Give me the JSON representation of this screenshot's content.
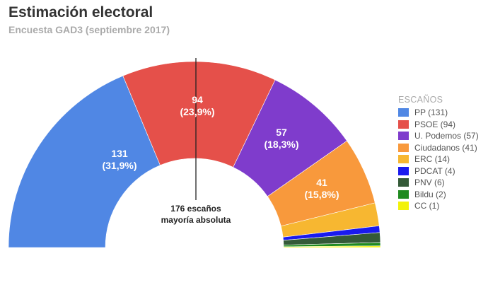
{
  "chart_data": {
    "type": "pie",
    "variant": "semicircle-donut",
    "title": "Estimación electoral",
    "subtitle": "Encuesta GAD3 (septiembre 2017)",
    "legend_title": "ESCAÑOS",
    "legend_position": "right",
    "total": 350,
    "majority": {
      "value": 176,
      "label_line1": "176 escaños",
      "label_line2": "mayoría absoluta"
    },
    "series": [
      {
        "name": "PP",
        "legend": "PP (131)",
        "value": 131,
        "pct": "31,9%",
        "label": "131",
        "label_pct": "(31,9%)",
        "color": "#5087e4"
      },
      {
        "name": "PSOE",
        "legend": "PSOE (94)",
        "value": 94,
        "pct": "23,9%",
        "label": "94",
        "label_pct": "(23,9%)",
        "color": "#e5504a"
      },
      {
        "name": "U. Podemos",
        "legend": "U. Podemos (57)",
        "value": 57,
        "pct": "18,3%",
        "label": "57",
        "label_pct": "(18,3%)",
        "color": "#7f3ccc"
      },
      {
        "name": "Ciudadanos",
        "legend": "Ciudadanos (41)",
        "value": 41,
        "pct": "15,8%",
        "label": "41",
        "label_pct": "(15,8%)",
        "color": "#f8993c"
      },
      {
        "name": "ERC",
        "legend": "ERC (14)",
        "value": 14,
        "color": "#f7b731"
      },
      {
        "name": "PDCAT",
        "legend": "PDCAT (4)",
        "value": 4,
        "color": "#1a1aee"
      },
      {
        "name": "PNV",
        "legend": "PNV (6)",
        "value": 6,
        "color": "#345a38"
      },
      {
        "name": "Bildu",
        "legend": "Bildu (2)",
        "value": 2,
        "color": "#1f8a1f"
      },
      {
        "name": "CC",
        "legend": "CC (1)",
        "value": 1,
        "color": "#f2f20a"
      }
    ]
  }
}
